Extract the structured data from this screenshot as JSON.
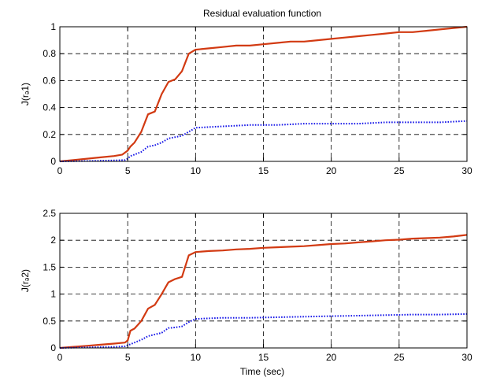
{
  "title": "Residual evaluation function",
  "xlabel": "Time (sec)",
  "colors": {
    "red": "#d23a12",
    "blue": "#1818e8"
  },
  "chart_data": [
    {
      "type": "line",
      "ylabel": "J(rₔ1)",
      "xlim": [
        0,
        30
      ],
      "ylim": [
        0,
        1
      ],
      "xticks": [
        0,
        5,
        10,
        15,
        20,
        25,
        30
      ],
      "yticks": [
        0,
        0.2,
        0.4,
        0.6,
        0.8,
        1
      ],
      "grid": true,
      "series": [
        {
          "color": "red",
          "style": "solid",
          "x": [
            0,
            1,
            2,
            3,
            4,
            4.6,
            5,
            5.2,
            5.5,
            6,
            6.5,
            7,
            7.5,
            8,
            8.5,
            9,
            9.5,
            10,
            11,
            12,
            13,
            14,
            15,
            16,
            17,
            18,
            19,
            20,
            21,
            22,
            23,
            24,
            25,
            26,
            27,
            28,
            29,
            30
          ],
          "y": [
            0,
            0.01,
            0.02,
            0.03,
            0.04,
            0.05,
            0.08,
            0.11,
            0.14,
            0.22,
            0.35,
            0.37,
            0.5,
            0.59,
            0.61,
            0.67,
            0.8,
            0.83,
            0.84,
            0.85,
            0.86,
            0.86,
            0.87,
            0.88,
            0.89,
            0.89,
            0.9,
            0.91,
            0.92,
            0.93,
            0.94,
            0.95,
            0.96,
            0.96,
            0.97,
            0.98,
            0.99,
            1.0
          ]
        },
        {
          "color": "blue",
          "style": "dotted",
          "x": [
            0,
            2,
            4,
            4.8,
            5,
            5.2,
            5.5,
            6,
            6.5,
            7,
            7.5,
            8,
            8.5,
            9,
            9.5,
            10,
            12,
            14,
            16,
            18,
            20,
            22,
            24,
            26,
            28,
            30
          ],
          "y": [
            0,
            0.003,
            0.007,
            0.01,
            0.02,
            0.04,
            0.05,
            0.07,
            0.11,
            0.12,
            0.14,
            0.17,
            0.18,
            0.19,
            0.22,
            0.25,
            0.26,
            0.27,
            0.27,
            0.28,
            0.28,
            0.28,
            0.29,
            0.29,
            0.29,
            0.3
          ]
        }
      ]
    },
    {
      "type": "line",
      "ylabel": "J(rₔ2)",
      "xlim": [
        0,
        30
      ],
      "ylim": [
        0,
        2.5
      ],
      "xticks": [
        0,
        5,
        10,
        15,
        20,
        25,
        30
      ],
      "yticks": [
        0,
        0.5,
        1,
        1.5,
        2,
        2.5
      ],
      "grid": true,
      "series": [
        {
          "color": "red",
          "style": "solid",
          "x": [
            0,
            1,
            2,
            3,
            4,
            4.8,
            5,
            5.2,
            5.5,
            6,
            6.5,
            7,
            7.5,
            8,
            8.5,
            9,
            9.5,
            10,
            11,
            12,
            13,
            14,
            15,
            16,
            17,
            18,
            19,
            20,
            21,
            22,
            23,
            24,
            25,
            26,
            27,
            28,
            29,
            30
          ],
          "y": [
            0,
            0.02,
            0.04,
            0.06,
            0.08,
            0.1,
            0.14,
            0.32,
            0.36,
            0.5,
            0.73,
            0.8,
            1.0,
            1.22,
            1.28,
            1.32,
            1.72,
            1.78,
            1.8,
            1.81,
            1.83,
            1.84,
            1.86,
            1.87,
            1.88,
            1.89,
            1.91,
            1.93,
            1.94,
            1.96,
            1.98,
            2.0,
            2.01,
            2.03,
            2.04,
            2.05,
            2.07,
            2.1
          ]
        },
        {
          "color": "blue",
          "style": "dotted",
          "x": [
            0,
            2,
            4,
            4.8,
            5,
            5.5,
            6,
            6.5,
            7,
            7.5,
            8,
            8.5,
            9,
            9.5,
            10,
            12,
            14,
            16,
            18,
            20,
            22,
            24,
            26,
            28,
            30
          ],
          "y": [
            0,
            0.01,
            0.02,
            0.03,
            0.05,
            0.1,
            0.15,
            0.22,
            0.25,
            0.28,
            0.37,
            0.38,
            0.4,
            0.48,
            0.54,
            0.56,
            0.56,
            0.57,
            0.58,
            0.59,
            0.6,
            0.61,
            0.62,
            0.62,
            0.63
          ]
        }
      ]
    }
  ]
}
